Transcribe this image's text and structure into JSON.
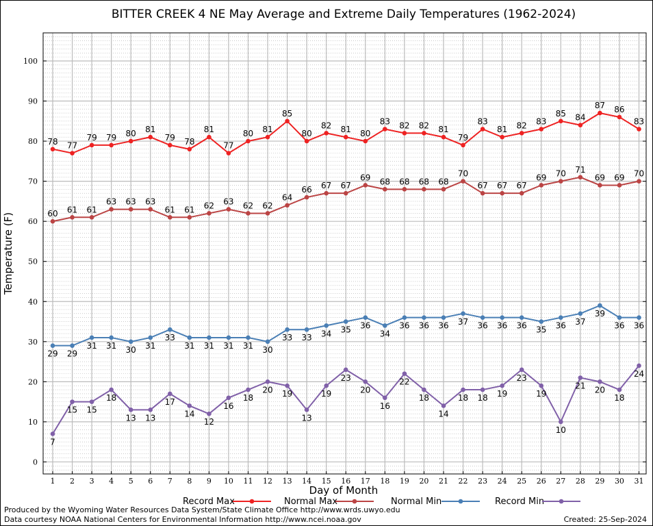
{
  "chart_data": {
    "type": "line",
    "title": "BITTER CREEK 4 NE May Average and Extreme Daily Temperatures (1962-2024)",
    "xlabel": "Day of Month",
    "ylabel": "Temperature (F)",
    "ylim": [
      -3,
      107
    ],
    "yticks": [
      0,
      10,
      20,
      30,
      40,
      50,
      60,
      70,
      80,
      90,
      100
    ],
    "grid": true,
    "legend_position": "bottom",
    "x": [
      1,
      2,
      3,
      4,
      5,
      6,
      7,
      8,
      9,
      10,
      11,
      12,
      13,
      14,
      15,
      16,
      17,
      18,
      19,
      20,
      21,
      22,
      23,
      24,
      25,
      26,
      27,
      28,
      29,
      30,
      31
    ],
    "series": [
      {
        "name": "Record Max",
        "color": "#ee2222",
        "label_position": "above",
        "values": [
          78,
          77,
          79,
          79,
          80,
          81,
          79,
          78,
          81,
          77,
          80,
          81,
          85,
          80,
          82,
          81,
          80,
          83,
          82,
          82,
          81,
          79,
          83,
          81,
          82,
          83,
          85,
          84,
          87,
          86,
          83
        ]
      },
      {
        "name": "Normal Max",
        "color": "#bb4444",
        "label_position": "above",
        "values": [
          60,
          61,
          61,
          63,
          63,
          63,
          61,
          61,
          62,
          63,
          62,
          62,
          64,
          66,
          67,
          67,
          69,
          68,
          68,
          68,
          68,
          70,
          67,
          67,
          67,
          69,
          70,
          71,
          69,
          69,
          70
        ]
      },
      {
        "name": "Normal Min",
        "color": "#4a7fb5",
        "label_position": "below",
        "values": [
          29,
          29,
          31,
          31,
          30,
          31,
          33,
          31,
          31,
          31,
          31,
          30,
          33,
          33,
          34,
          35,
          36,
          34,
          36,
          36,
          36,
          37,
          36,
          36,
          36,
          35,
          36,
          37,
          39,
          36,
          36
        ]
      },
      {
        "name": "Record Min",
        "color": "#8060a8",
        "label_position": "below",
        "values": [
          7,
          15,
          15,
          18,
          13,
          13,
          17,
          14,
          12,
          16,
          18,
          20,
          19,
          13,
          19,
          23,
          20,
          16,
          22,
          18,
          14,
          18,
          18,
          19,
          23,
          19,
          10,
          21,
          20,
          18,
          24
        ]
      }
    ]
  },
  "footer": {
    "line1": "Produced by the Wyoming Water Resources Data System/State Climate Office http://www.wrds.uwyo.edu",
    "line2": "Data courtesy NOAA National Centers for Environmental Information http://www.ncei.noaa.gov",
    "created": "Created:  25-Sep-2024"
  }
}
